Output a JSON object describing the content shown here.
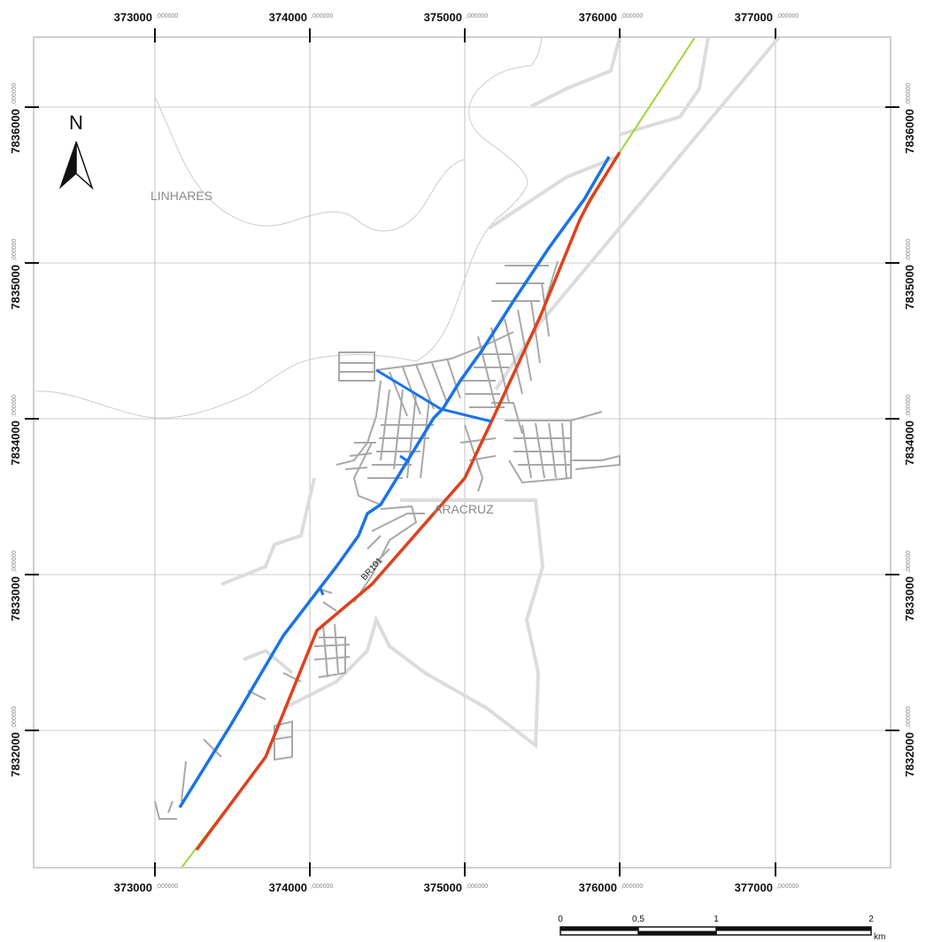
{
  "map": {
    "x_ticks": [
      "373000",
      "374000",
      "375000",
      "376000",
      "377000"
    ],
    "y_ticks": [
      "7836000",
      "7835000",
      "7834000",
      "7833000",
      "7832000"
    ],
    "coord_decimal_suffix": ",000000",
    "places": {
      "linhares": "LINHARES",
      "aracruz": "ARACRUZ"
    },
    "road_label": "BR101",
    "north_label": "N",
    "scale": {
      "labels": [
        "0",
        "0,5",
        "1",
        "2"
      ],
      "unit": "km"
    },
    "colors": {
      "frame": "#cfcfcf",
      "grid": "#9a9a9a",
      "street": "#a8a8a8",
      "boundary": "#dcdcdc",
      "river": "#cccccc",
      "blue_route": "#1a73e8",
      "red_route": "#e0401c",
      "green_line": "#9ad83a"
    }
  }
}
